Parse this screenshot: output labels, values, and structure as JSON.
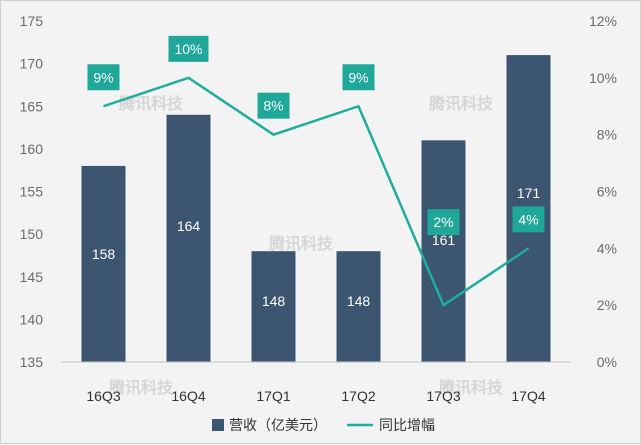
{
  "chart_data": {
    "type": "bar",
    "categories": [
      "16Q3",
      "16Q4",
      "17Q1",
      "17Q2",
      "17Q3",
      "17Q4"
    ],
    "series": [
      {
        "name": "营收（亿美元）",
        "type": "bar",
        "axis": "left",
        "values": [
          158,
          164,
          148,
          148,
          161,
          171
        ],
        "labels": [
          "158",
          "164",
          "148",
          "148",
          "161",
          "171"
        ]
      },
      {
        "name": "同比增幅",
        "type": "line",
        "axis": "right",
        "values": [
          9,
          10,
          8,
          9,
          2,
          4
        ],
        "labels": [
          "9%",
          "10%",
          "8%",
          "9%",
          "2%",
          "4%"
        ]
      }
    ],
    "left_axis": {
      "ylim": [
        135,
        175
      ],
      "ticks": [
        "135",
        "140",
        "145",
        "150",
        "155",
        "160",
        "165",
        "170",
        "175"
      ]
    },
    "right_axis": {
      "ylim": [
        0,
        12
      ],
      "ticks": [
        "0%",
        "2%",
        "4%",
        "6%",
        "8%",
        "10%",
        "12%"
      ]
    },
    "grid": false,
    "legend": "bottom",
    "watermark": "腾讯科技",
    "colors": {
      "bar": "#3c5570",
      "line": "#1fada0",
      "pct_box": "#1fa79a",
      "background": "#f3f3f3"
    }
  }
}
